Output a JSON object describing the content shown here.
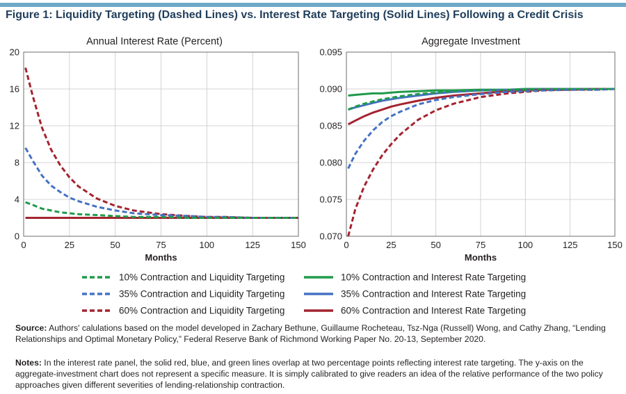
{
  "figure": {
    "title": "Figure 1: Liquidity Targeting (Dashed Lines) vs. Interest Rate Targeting (Solid Lines) Following a Credit Crisis",
    "accent_bar_color": "#6fa8c9",
    "title_color": "#1f3d5a"
  },
  "chart_data": [
    {
      "type": "line",
      "title": "Annual Interest Rate (Percent)",
      "xlabel": "Months",
      "ylabel": "",
      "xlim": [
        0,
        150
      ],
      "ylim": [
        0,
        20
      ],
      "xticks": [
        0,
        25,
        50,
        75,
        100,
        125,
        150
      ],
      "xtick_labels": [
        "0",
        "25",
        "50",
        "75",
        "100",
        "125",
        "150"
      ],
      "yticks": [
        0,
        4,
        8,
        12,
        16,
        20
      ],
      "ytick_labels": [
        "0",
        "4",
        "8",
        "12",
        "16",
        "20"
      ],
      "grid": true,
      "x": [
        1,
        5,
        10,
        15,
        20,
        25,
        30,
        40,
        50,
        60,
        75,
        90,
        100,
        110,
        125,
        140,
        150
      ],
      "series": [
        {
          "name": "60% Contraction and Liquidity Targeting",
          "color": "#a3232f",
          "dash": true,
          "values": [
            18.3,
            15.2,
            11.8,
            9.4,
            7.7,
            6.4,
            5.4,
            4.1,
            3.3,
            2.8,
            2.4,
            2.2,
            2.1,
            2.1,
            2.0,
            2.0,
            2.0
          ]
        },
        {
          "name": "35% Contraction and Liquidity Targeting",
          "color": "#4472c4",
          "dash": true,
          "values": [
            9.6,
            8.2,
            6.6,
            5.5,
            4.8,
            4.2,
            3.8,
            3.2,
            2.8,
            2.5,
            2.3,
            2.2,
            2.1,
            2.1,
            2.0,
            2.0,
            2.0
          ]
        },
        {
          "name": "10% Contraction and Liquidity Targeting",
          "color": "#1f9a4a",
          "dash": true,
          "values": [
            3.7,
            3.4,
            3.0,
            2.8,
            2.6,
            2.5,
            2.4,
            2.3,
            2.2,
            2.1,
            2.1,
            2.0,
            2.0,
            2.0,
            2.0,
            2.0,
            2.0
          ]
        },
        {
          "name": "10% Contraction and Interest Rate Targeting",
          "color": "#1f9a4a",
          "dash": false,
          "values": [
            2.0,
            2.0,
            2.0,
            2.0,
            2.0,
            2.0,
            2.0,
            2.0,
            2.0,
            2.0,
            2.0,
            2.0,
            2.0,
            2.0,
            2.0,
            2.0,
            2.0
          ]
        },
        {
          "name": "35% Contraction and Interest Rate Targeting",
          "color": "#4472c4",
          "dash": false,
          "values": [
            2.0,
            2.0,
            2.0,
            2.0,
            2.0,
            2.0,
            2.0,
            2.0,
            2.0,
            2.0,
            2.0,
            2.0,
            2.0,
            2.0,
            2.0,
            2.0,
            2.0
          ]
        },
        {
          "name": "60% Contraction and Interest Rate Targeting",
          "color": "#a3232f",
          "dash": false,
          "values": [
            2.0,
            2.0,
            2.0,
            2.0,
            2.0,
            2.0,
            2.0,
            2.0,
            2.0,
            2.0,
            2.0,
            2.0,
            2.0,
            2.0,
            2.0,
            2.0,
            2.0
          ]
        }
      ]
    },
    {
      "type": "line",
      "title": "Aggregate Investment",
      "xlabel": "Months",
      "ylabel": "",
      "xlim": [
        0,
        150
      ],
      "ylim": [
        0.07,
        0.095
      ],
      "xticks": [
        0,
        25,
        50,
        75,
        100,
        125,
        150
      ],
      "xtick_labels": [
        "0",
        "25",
        "50",
        "75",
        "100",
        "125",
        "150"
      ],
      "yticks": [
        0.07,
        0.075,
        0.08,
        0.085,
        0.09,
        0.095
      ],
      "ytick_labels": [
        "0.070",
        "0.075",
        "0.080",
        "0.085",
        "0.090",
        "0.095"
      ],
      "grid": true,
      "x": [
        1,
        5,
        10,
        15,
        20,
        25,
        30,
        40,
        50,
        60,
        75,
        90,
        100,
        110,
        125,
        140,
        150
      ],
      "series": [
        {
          "name": "60% Contraction and Liquidity Targeting",
          "color": "#a3232f",
          "dash": true,
          "values": [
            0.07,
            0.0737,
            0.0768,
            0.0791,
            0.081,
            0.0825,
            0.0838,
            0.0858,
            0.0871,
            0.088,
            0.0889,
            0.0894,
            0.0896,
            0.0898,
            0.0899,
            0.0899,
            0.09
          ]
        },
        {
          "name": "35% Contraction and Liquidity Targeting",
          "color": "#4472c4",
          "dash": true,
          "values": [
            0.0792,
            0.0812,
            0.083,
            0.0844,
            0.0855,
            0.0863,
            0.0869,
            0.0879,
            0.0885,
            0.0889,
            0.0893,
            0.0896,
            0.0897,
            0.0898,
            0.0899,
            0.0899,
            0.09
          ]
        },
        {
          "name": "10% Contraction and Liquidity Targeting",
          "color": "#1f9a4a",
          "dash": true,
          "values": [
            0.0872,
            0.0876,
            0.088,
            0.0883,
            0.0886,
            0.0888,
            0.089,
            0.0893,
            0.0895,
            0.0897,
            0.0898,
            0.0899,
            0.0899,
            0.09,
            0.09,
            0.09,
            0.09
          ]
        },
        {
          "name": "10% Contraction and Interest Rate Targeting",
          "color": "#1f9a4a",
          "dash": false,
          "values": [
            0.0891,
            0.0892,
            0.0893,
            0.0894,
            0.0894,
            0.0895,
            0.0896,
            0.0897,
            0.0898,
            0.0898,
            0.0899,
            0.0899,
            0.09,
            0.09,
            0.09,
            0.09,
            0.09
          ]
        },
        {
          "name": "35% Contraction and Interest Rate Targeting",
          "color": "#4472c4",
          "dash": false,
          "values": [
            0.0872,
            0.0875,
            0.0878,
            0.0881,
            0.0884,
            0.0886,
            0.0888,
            0.0891,
            0.0894,
            0.0896,
            0.0898,
            0.0899,
            0.0899,
            0.09,
            0.09,
            0.09,
            0.09
          ]
        },
        {
          "name": "60% Contraction and Interest Rate Targeting",
          "color": "#a3232f",
          "dash": false,
          "values": [
            0.0852,
            0.0857,
            0.0863,
            0.0868,
            0.0872,
            0.0876,
            0.0879,
            0.0884,
            0.0888,
            0.0891,
            0.0894,
            0.0897,
            0.0898,
            0.0899,
            0.0899,
            0.09,
            0.09
          ]
        }
      ]
    }
  ],
  "legend": {
    "items": [
      {
        "label": "10% Contraction and Liquidity Targeting",
        "color": "#1f9a4a",
        "dash": true
      },
      {
        "label": "10% Contraction and Interest Rate Targeting",
        "color": "#1f9a4a",
        "dash": false
      },
      {
        "label": "35% Contraction and Liquidity Targeting",
        "color": "#4472c4",
        "dash": true
      },
      {
        "label": "35% Contraction and Interest Rate Targeting",
        "color": "#4472c4",
        "dash": false
      },
      {
        "label": "60% Contraction and Liquidity Targeting",
        "color": "#a3232f",
        "dash": true
      },
      {
        "label": "60% Contraction and Interest Rate Targeting",
        "color": "#a3232f",
        "dash": false
      }
    ]
  },
  "source": {
    "label": "Source:",
    "text": " Authors' calulations based on the model developed in Zachary Bethune, Guillaume Rocheteau, Tsz-Nga (Russell) Wong, and Cathy Zhang, “Lending Relationships and Optimal Monetary Policy,” Federal Reserve Bank of Richmond Working Paper No. 20-13, September 2020."
  },
  "notes": {
    "label": "Notes:",
    "text": " In the interest rate panel, the solid red, blue, and green lines overlap at two percentage points reflecting interest rate targeting. The y-axis on the aggregate-investment chart does not represent a specific measure. It is simply calibrated to give readers an idea of the relative performance of the two policy approaches given different severities of lending-relationship contraction."
  }
}
